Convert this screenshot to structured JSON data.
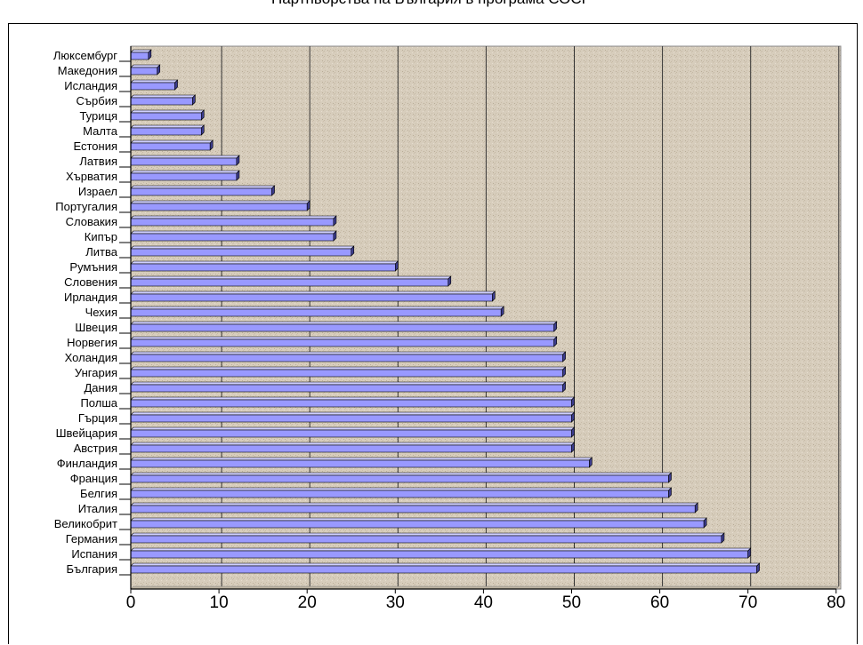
{
  "chart_data": {
    "type": "bar",
    "orientation": "horizontal",
    "title": "Партньорства на България в програма СОСР",
    "categories": [
      "Люксембург",
      "Македония",
      "Исландия",
      "Сърбия",
      "Туриця",
      "Малта",
      "Естония",
      "Латвия",
      "Хърватия",
      "Израел",
      "Португалия",
      "Словакия",
      "Кипър",
      "Литва",
      "Румъния",
      "Словения",
      "Ирландия",
      "Чехия",
      "Швеция",
      "Норвегия",
      "Холандия",
      "Унгария",
      "Дания",
      "Полша",
      "Гърция",
      "Швейцария",
      "Австрия",
      "Финландия",
      "Франция",
      "Белгия",
      "Италия",
      "Великобрит",
      "Германия",
      "Испания",
      "България"
    ],
    "values": [
      2,
      3,
      5,
      7,
      8,
      8,
      9,
      12,
      12,
      16,
      20,
      23,
      23,
      25,
      30,
      36,
      41,
      42,
      48,
      48,
      49,
      49,
      49,
      50,
      50,
      50,
      50,
      52,
      61,
      61,
      64,
      65,
      67,
      70,
      71
    ],
    "xlim": [
      0,
      80
    ],
    "xticks": [
      0,
      10,
      20,
      30,
      40,
      50,
      60,
      70,
      80
    ],
    "grid": "vertical",
    "xlabel": "",
    "ylabel": "",
    "colors": {
      "bar": "#9999ff",
      "bar_top": "#d0d0ff",
      "bar_side": "#3c3c8c",
      "plot_bg": "#d7cdbc",
      "grid": "#333333"
    }
  }
}
